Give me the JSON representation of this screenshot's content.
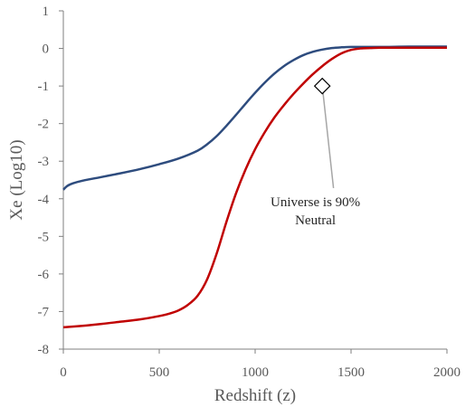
{
  "chart_data": {
    "type": "line",
    "title": "",
    "xlabel": "Redshift (z)",
    "ylabel": "Xe (Log10)",
    "xlim": [
      0,
      2000
    ],
    "ylim": [
      -8,
      1
    ],
    "xticks": [
      0,
      500,
      1000,
      1500,
      2000
    ],
    "yticks": [
      1,
      0,
      -1,
      -2,
      -3,
      -4,
      -5,
      -6,
      -7,
      -8
    ],
    "grid": false,
    "legend": "none",
    "series": [
      {
        "color": "#2E4C7E",
        "x": [
          0,
          20,
          50,
          100,
          200,
          300,
          400,
          500,
          600,
          700,
          750,
          800,
          850,
          900,
          950,
          1000,
          1050,
          1100,
          1150,
          1200,
          1250,
          1300,
          1350,
          1400,
          1450,
          1500,
          1550,
          1600,
          1700,
          1800,
          1900,
          2000
        ],
        "y": [
          -3.76,
          -3.66,
          -3.59,
          -3.52,
          -3.42,
          -3.32,
          -3.21,
          -3.08,
          -2.93,
          -2.72,
          -2.55,
          -2.33,
          -2.06,
          -1.77,
          -1.47,
          -1.18,
          -0.91,
          -0.67,
          -0.47,
          -0.31,
          -0.18,
          -0.09,
          -0.03,
          0.01,
          0.03,
          0.04,
          0.04,
          0.04,
          0.04,
          0.05,
          0.05,
          0.05
        ]
      },
      {
        "color": "#C00000",
        "x": [
          0,
          100,
          200,
          300,
          400,
          500,
          550,
          600,
          650,
          700,
          750,
          800,
          850,
          900,
          950,
          1000,
          1050,
          1100,
          1150,
          1200,
          1250,
          1300,
          1350,
          1400,
          1450,
          1500,
          1550,
          1600,
          1650,
          1700,
          1800,
          1900,
          2000
        ],
        "y": [
          -7.42,
          -7.38,
          -7.33,
          -7.27,
          -7.21,
          -7.12,
          -7.06,
          -6.97,
          -6.82,
          -6.58,
          -6.14,
          -5.45,
          -4.62,
          -3.86,
          -3.22,
          -2.68,
          -2.23,
          -1.84,
          -1.51,
          -1.21,
          -0.94,
          -0.69,
          -0.47,
          -0.28,
          -0.13,
          -0.04,
          0.0,
          0.01,
          0.02,
          0.02,
          0.02,
          0.02,
          0.02
        ]
      }
    ],
    "annotation": {
      "text_line1": "Universe is 90%",
      "text_line2": "Neutral",
      "point": {
        "x": 1350,
        "y": -1
      },
      "text_anchor": {
        "x": 1550,
        "y": -4.1
      },
      "marker": "diamond"
    }
  }
}
